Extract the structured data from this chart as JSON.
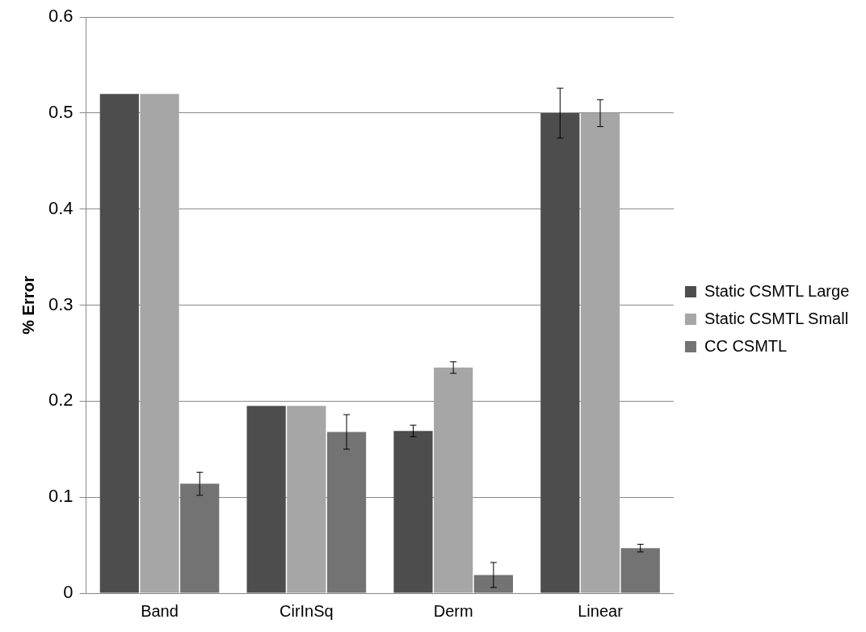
{
  "chart_data": {
    "type": "bar",
    "ylabel": "% Error",
    "categories": [
      "Band",
      "CirInSq",
      "Derm",
      "Linear"
    ],
    "series": [
      {
        "name": "Static CSMTL Large",
        "color": "#4d4d4d",
        "values": [
          0.52,
          0.195,
          0.169,
          0.5
        ],
        "errors": [
          null,
          null,
          0.006,
          0.026
        ]
      },
      {
        "name": "Static CSMTL Small",
        "color": "#a6a6a6",
        "values": [
          0.52,
          0.195,
          0.235,
          0.5
        ],
        "errors": [
          null,
          null,
          0.006,
          0.014
        ]
      },
      {
        "name": "CC CSMTL",
        "color": "#737373",
        "values": [
          0.114,
          0.168,
          0.019,
          0.047
        ],
        "errors": [
          0.012,
          0.018,
          0.013,
          0.004
        ]
      }
    ],
    "ylim": [
      0,
      0.6
    ],
    "yticks": [
      0,
      0.1,
      0.2,
      0.3,
      0.4,
      0.5,
      0.6
    ],
    "grid": "y",
    "legend": "right"
  }
}
